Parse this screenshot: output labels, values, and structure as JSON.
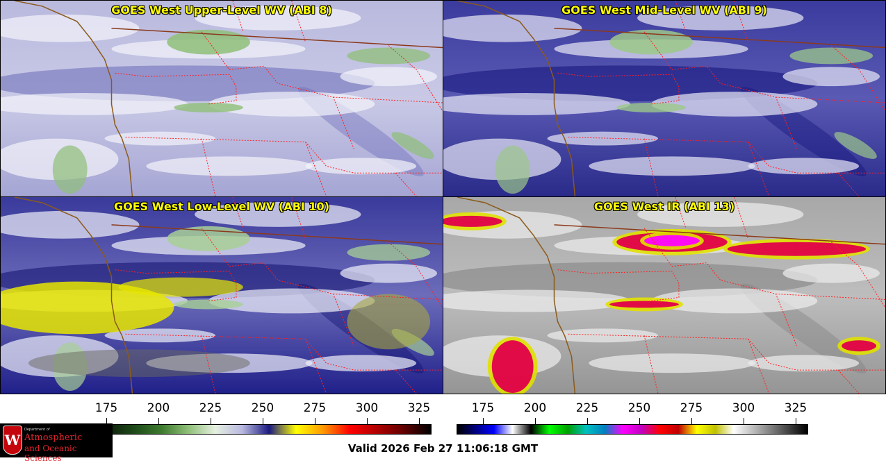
{
  "panels": [
    {
      "title": "GOES West Upper-Level WV (ABI 8)",
      "style": "upper"
    },
    {
      "title": "GOES West Mid-Level WV (ABI 9)",
      "style": "mid"
    },
    {
      "title": "GOES West Low-Level WV (ABI 10)",
      "style": "low"
    },
    {
      "title": "GOES West IR (ABI 13)",
      "style": "ir"
    }
  ],
  "colorbars": {
    "wv": {
      "ticks": [
        "175",
        "200",
        "225",
        "250",
        "275",
        "300",
        "325"
      ],
      "colors": [
        "#000000",
        "#0d1f0a",
        "#1e4a1a",
        "#3d7a2e",
        "#8fbf78",
        "#e6f0e0",
        "#b8b8e0",
        "#1a1a80",
        "#ffff00",
        "#ff9900",
        "#ff0000",
        "#b00000",
        "#600000",
        "#000000"
      ]
    },
    "ir": {
      "ticks": [
        "175",
        "200",
        "225",
        "250",
        "275",
        "300",
        "325"
      ],
      "colors": [
        "#000000",
        "#000080",
        "#0000ff",
        "#ffffff",
        "#000000",
        "#00ff00",
        "#00a000",
        "#00c0c0",
        "#0080c0",
        "#ff00ff",
        "#c000c0",
        "#ff0000",
        "#c00000",
        "#ffff00",
        "#c0c000",
        "#ffffff",
        "#c0c0c0",
        "#808080",
        "#404040",
        "#000000"
      ]
    }
  },
  "logo": {
    "crest_letter": "W",
    "dept": "Department of",
    "line1": "Atmospheric",
    "line2": "and Oceanic Sciences"
  },
  "valid_text": "Valid 2026 Feb 27 11:06:18 GMT"
}
